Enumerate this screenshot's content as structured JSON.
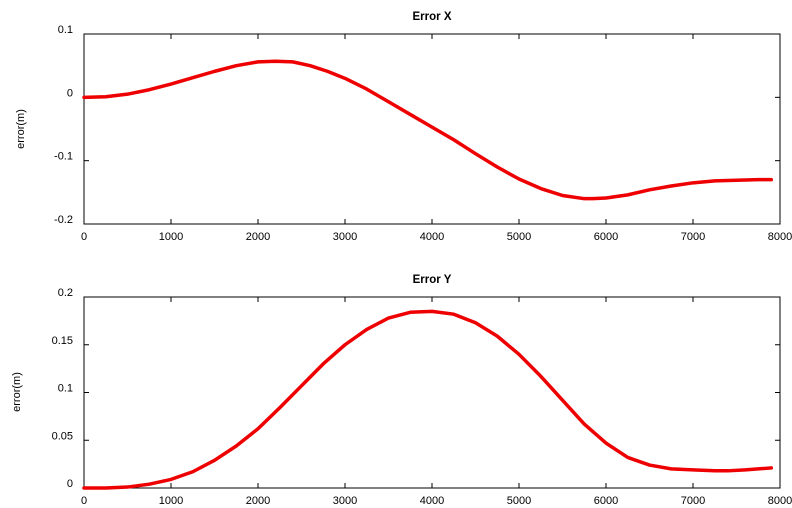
{
  "figure": {
    "background": "#ffffff",
    "line_color": "#ee0000",
    "axis_color": "#000000"
  },
  "chart_data": [
    {
      "type": "line",
      "title": "Error X",
      "xlabel": "",
      "ylabel": "error(m)",
      "xlim": [
        0,
        8000
      ],
      "ylim": [
        -0.2,
        0.1
      ],
      "xticks": [
        0,
        1000,
        2000,
        3000,
        4000,
        5000,
        6000,
        7000,
        8000
      ],
      "xtick_labels": [
        "0",
        "1000",
        "2000",
        "3000",
        "4000",
        "5000",
        "6000",
        "7000",
        "8000"
      ],
      "yticks": [
        -0.2,
        -0.1,
        0,
        0.1
      ],
      "ytick_labels": [
        "-0.2",
        "-0.1",
        "0",
        "0.1"
      ],
      "grid": false,
      "legend": "none",
      "series": [
        {
          "color": "#ee0000",
          "x": [
            0,
            250,
            500,
            750,
            1000,
            1250,
            1500,
            1750,
            2000,
            2200,
            2400,
            2600,
            2800,
            3000,
            3250,
            3500,
            3750,
            4000,
            4250,
            4500,
            4750,
            5000,
            5250,
            5500,
            5750,
            5850,
            6000,
            6250,
            6500,
            6750,
            7000,
            7250,
            7500,
            7750,
            7900
          ],
          "y": [
            0.0,
            0.001,
            0.005,
            0.012,
            0.021,
            0.031,
            0.041,
            0.05,
            0.056,
            0.057,
            0.056,
            0.05,
            0.041,
            0.03,
            0.013,
            -0.007,
            -0.027,
            -0.047,
            -0.067,
            -0.089,
            -0.11,
            -0.129,
            -0.144,
            -0.155,
            -0.16,
            -0.16,
            -0.159,
            -0.154,
            -0.146,
            -0.14,
            -0.135,
            -0.132,
            -0.131,
            -0.13,
            -0.13
          ]
        }
      ]
    },
    {
      "type": "line",
      "title": "Error Y",
      "xlabel": "",
      "ylabel": "error(m)",
      "xlim": [
        0,
        8000
      ],
      "ylim": [
        0,
        0.2
      ],
      "xticks": [
        0,
        1000,
        2000,
        3000,
        4000,
        5000,
        6000,
        7000,
        8000
      ],
      "xtick_labels": [
        "0",
        "1000",
        "2000",
        "3000",
        "4000",
        "5000",
        "6000",
        "7000",
        "8000"
      ],
      "yticks": [
        0,
        0.05,
        0.1,
        0.15,
        0.2
      ],
      "ytick_labels": [
        "0",
        "0.05",
        "0.1",
        "0.15",
        "0.2"
      ],
      "grid": false,
      "legend": "none",
      "series": [
        {
          "color": "#ee0000",
          "x": [
            0,
            250,
            500,
            750,
            1000,
            1250,
            1500,
            1750,
            2000,
            2250,
            2500,
            2750,
            3000,
            3250,
            3500,
            3750,
            4000,
            4250,
            4500,
            4750,
            5000,
            5250,
            5500,
            5750,
            6000,
            6250,
            6500,
            6750,
            7000,
            7250,
            7400,
            7600,
            7900
          ],
          "y": [
            0.0,
            0.0,
            0.001,
            0.004,
            0.009,
            0.017,
            0.029,
            0.044,
            0.062,
            0.084,
            0.107,
            0.13,
            0.15,
            0.166,
            0.178,
            0.184,
            0.185,
            0.182,
            0.173,
            0.159,
            0.14,
            0.117,
            0.092,
            0.067,
            0.047,
            0.032,
            0.024,
            0.02,
            0.019,
            0.018,
            0.018,
            0.019,
            0.021
          ]
        }
      ]
    }
  ]
}
